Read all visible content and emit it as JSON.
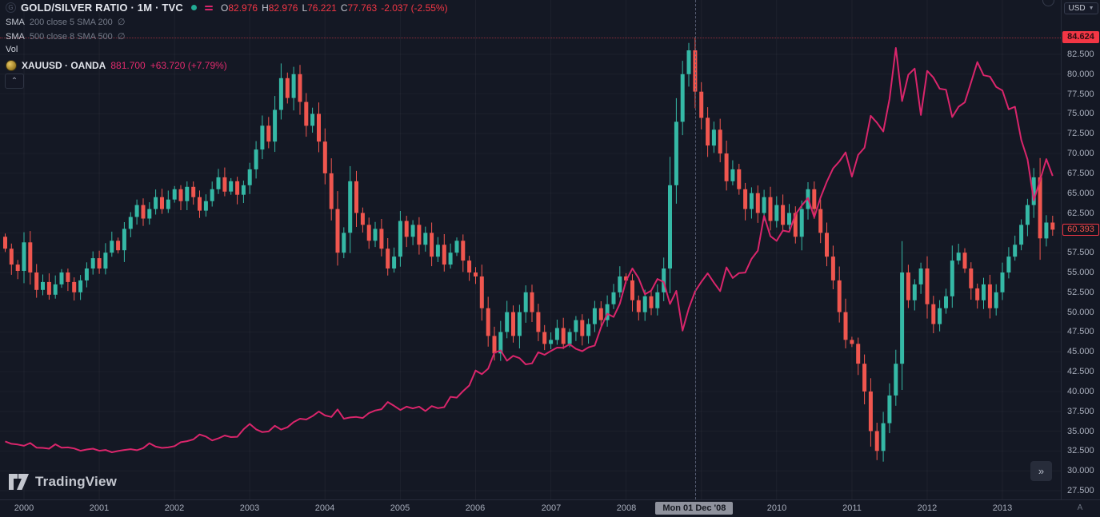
{
  "header": {
    "symbol_title": "GOLD/SILVER RATIO · 1M · TVC",
    "source_icon_letter": "G",
    "ohlc": {
      "open_label": "O",
      "open": "82.976",
      "high_label": "H",
      "high": "82.976",
      "low_label": "L",
      "low": "76.221",
      "close_label": "C",
      "close": "77.763",
      "change": "-2.037 (-2.55%)"
    },
    "indicators": [
      {
        "name": "SMA",
        "params": "200 close 5 SMA 200",
        "value": "∅"
      },
      {
        "name": "SMA",
        "params": "500 close 8 SMA 500",
        "value": "∅"
      },
      {
        "name": "Vol",
        "params": "",
        "value": ""
      }
    ],
    "overlay": {
      "symbol": "XAUUSD · OANDA",
      "value": "881.700",
      "change": "+63.720 (+7.79%)"
    },
    "collapse_button": "⌃"
  },
  "price_scale": {
    "currency_button": "USD",
    "ticks": [
      "82.500",
      "80.000",
      "77.500",
      "75.000",
      "72.500",
      "70.000",
      "67.500",
      "65.000",
      "62.500",
      "60.000",
      "57.500",
      "55.000",
      "52.500",
      "50.000",
      "47.500",
      "45.000",
      "42.500",
      "40.000",
      "37.500",
      "35.000",
      "32.500",
      "30.000",
      "27.500"
    ],
    "hidden_tick": "60.000",
    "last_price_badge": "84.624",
    "crosshair_price_badge": "60.393",
    "auto_button": "A"
  },
  "time_scale": {
    "years": [
      "2000",
      "2001",
      "2002",
      "2003",
      "2004",
      "2005",
      "2006",
      "2007",
      "2008",
      "2009",
      "2010",
      "2011",
      "2012",
      "2013"
    ],
    "crosshair_tooltip": "Mon 01 Dec '08",
    "tooltip_replaces": "2009"
  },
  "footer": {
    "logo_text": "TradingView",
    "more_button": "»"
  },
  "colors": {
    "background": "#141824",
    "up_candle": "#35b9a6",
    "down_candle": "#f0564f",
    "overlay_line": "#d9256b",
    "accent_red": "#f23645",
    "axis_text": "#a7adbb",
    "grid": "rgba(255,255,255,0.045)"
  },
  "chart_data": {
    "type": "candlestick+line",
    "title": "GOLD/SILVER RATIO",
    "interval": "1M",
    "start_month": "1999-10",
    "y_axis": {
      "min": 27.5,
      "max": 85.0,
      "step": 2.5,
      "side": "right"
    },
    "grid": true,
    "last_price": 84.624,
    "crosshair": {
      "date": "Mon 01 Dec '08",
      "price": 60.393,
      "bar_ohlc": {
        "open": 82.976,
        "high": 82.976,
        "low": 76.221,
        "close": 77.763,
        "change": -2.037,
        "change_pct": -2.55
      }
    },
    "overlay_at_crosshair": {
      "symbol": "XAUUSD",
      "value": 881.7,
      "change": 63.72,
      "change_pct": 7.79
    },
    "series": [
      {
        "name": "GOLD/SILVER RATIO",
        "type": "candlestick",
        "scale": "right",
        "up_color": "#35b9a6",
        "down_color": "#f0564f",
        "monthly_closes": [
          58.0,
          56.0,
          55.2,
          58.8,
          55.0,
          52.8,
          53.8,
          52.2,
          53.5,
          55.0,
          53.8,
          52.5,
          54.0,
          55.5,
          56.8,
          55.5,
          57.5,
          59.0,
          57.8,
          60.5,
          62.0,
          63.5,
          61.8,
          63.0,
          64.5,
          63.0,
          64.2,
          65.5,
          64.0,
          65.8,
          64.5,
          62.8,
          64.0,
          65.5,
          67.0,
          65.2,
          66.5,
          64.8,
          66.0,
          68.0,
          70.5,
          73.5,
          71.5,
          75.5,
          79.5,
          77.0,
          80.0,
          76.5,
          73.5,
          75.0,
          71.5,
          67.5,
          63.0,
          57.5,
          60.0,
          66.5,
          62.5,
          61.0,
          59.0,
          60.5,
          58.0,
          55.5,
          57.0,
          61.5,
          59.5,
          61.0,
          58.5,
          60.0,
          57.0,
          58.5,
          56.0,
          57.5,
          59.0,
          56.5,
          55.0,
          54.5,
          50.5,
          47.0,
          44.8,
          47.5,
          50.0,
          47.0,
          50.0,
          52.5,
          50.0,
          47.5,
          46.0,
          46.5,
          48.0,
          46.0,
          47.5,
          49.0,
          47.0,
          48.5,
          50.5,
          49.0,
          51.0,
          52.5,
          54.5,
          54.0,
          51.5,
          50.0,
          52.0,
          50.5,
          52.5,
          55.5,
          66.0,
          74.0,
          80.0,
          83.0,
          77.8,
          74.5,
          71.0,
          73.0,
          70.0,
          66.5,
          68.0,
          65.5,
          63.0,
          65.0,
          62.5,
          64.5,
          61.5,
          63.5,
          61.0,
          62.5,
          59.5,
          63.0,
          65.5,
          63.0,
          60.0,
          57.0,
          54.0,
          50.0,
          46.5,
          46.0,
          43.5,
          40.0,
          35.0,
          32.5,
          36.0,
          39.5,
          43.5,
          55.0,
          51.5,
          53.5,
          55.5,
          51.0,
          48.5,
          50.5,
          52.0,
          56.5,
          57.5,
          55.5,
          53.0,
          51.5,
          53.5,
          50.5,
          52.5,
          55.0,
          57.0,
          58.5,
          61.0,
          63.5,
          67.0,
          59.3,
          61.3,
          60.4
        ]
      },
      {
        "name": "XAUUSD",
        "type": "line",
        "scale": "hidden",
        "color": "#d9256b",
        "monthly_closes": [
          300,
          291,
          288,
          283,
          294,
          276,
          275,
          272,
          289,
          276,
          277,
          273,
          264,
          269,
          272,
          264,
          267,
          258,
          263,
          267,
          270,
          266,
          274,
          293,
          280,
          275,
          277,
          282,
          297,
          301,
          308,
          327,
          319,
          304,
          312,
          323,
          317,
          318,
          347,
          368,
          347,
          336,
          339,
          361,
          346,
          355,
          375,
          388,
          385,
          398,
          416,
          401,
          395,
          424,
          388,
          393,
          395,
          391,
          410,
          420,
          425,
          453,
          438,
          422,
          435,
          428,
          435,
          418,
          437,
          429,
          433,
          473,
          470,
          495,
          517,
          575,
          561,
          582,
          644,
          653,
          613,
          632,
          623,
          599,
          603,
          646,
          636,
          651,
          664,
          663,
          677,
          659,
          650,
          665,
          672,
          743,
          795,
          783,
          834,
          923,
          971,
          933,
          871,
          885,
          930,
          918,
          833,
          884,
          730,
          816,
          882,
          919,
          952,
          916,
          883,
          975,
          934,
          953,
          955,
          1008,
          1040,
          1175,
          1096,
          1078,
          1118,
          1113,
          1180,
          1215,
          1244,
          1169,
          1246,
          1307,
          1359,
          1386,
          1421,
          1327,
          1411,
          1439,
          1563,
          1536,
          1502,
          1628,
          1826,
          1620,
          1722,
          1746,
          1566,
          1737,
          1711,
          1668,
          1664,
          1558,
          1598,
          1615,
          1692,
          1771,
          1720,
          1715,
          1675,
          1661,
          1588,
          1598,
          1469,
          1394,
          1235,
          1313,
          1395,
          1330
        ]
      }
    ]
  }
}
